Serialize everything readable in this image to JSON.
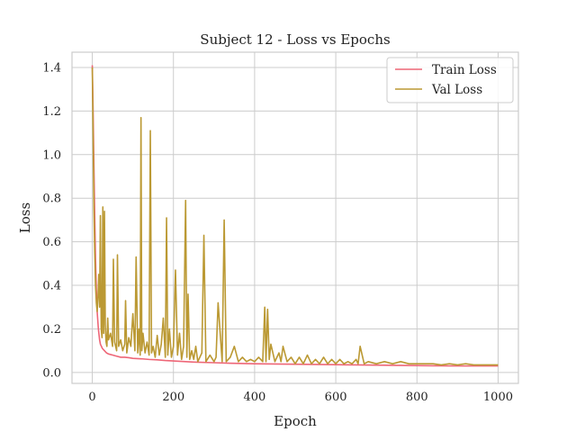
{
  "chart_data": {
    "type": "line",
    "title": "Subject 12 - Loss vs Epochs",
    "xlabel": "Epoch",
    "ylabel": "Loss",
    "xlim": [
      -50,
      1050
    ],
    "ylim": [
      -0.05,
      1.47
    ],
    "xticks": [
      0,
      200,
      400,
      600,
      800,
      1000
    ],
    "yticks": [
      0.0,
      0.2,
      0.4,
      0.6,
      0.8,
      1.0,
      1.2,
      1.4
    ],
    "xtick_labels": [
      "0",
      "200",
      "400",
      "600",
      "800",
      "1000"
    ],
    "ytick_labels": [
      "0.0",
      "0.2",
      "0.4",
      "0.6",
      "0.8",
      "1.0",
      "1.2",
      "1.4"
    ],
    "grid": true,
    "legend_position": "top-right",
    "series": [
      {
        "name": "Train Loss",
        "color": "#ee6677",
        "x": [
          0,
          2,
          4,
          6,
          8,
          10,
          12,
          15,
          18,
          20,
          25,
          30,
          35,
          40,
          50,
          60,
          70,
          80,
          90,
          100,
          120,
          140,
          160,
          180,
          200,
          250,
          300,
          350,
          400,
          450,
          500,
          550,
          600,
          650,
          700,
          750,
          800,
          850,
          900,
          950,
          1000
        ],
        "y": [
          1.41,
          1.2,
          0.95,
          0.72,
          0.52,
          0.38,
          0.28,
          0.2,
          0.15,
          0.13,
          0.11,
          0.1,
          0.09,
          0.085,
          0.08,
          0.075,
          0.07,
          0.07,
          0.068,
          0.065,
          0.063,
          0.06,
          0.058,
          0.055,
          0.053,
          0.048,
          0.045,
          0.042,
          0.04,
          0.039,
          0.038,
          0.037,
          0.036,
          0.035,
          0.034,
          0.033,
          0.032,
          0.031,
          0.03,
          0.03,
          0.03
        ]
      },
      {
        "name": "Val Loss",
        "color": "#bb9933",
        "x": [
          0,
          2,
          4,
          6,
          8,
          10,
          12,
          14,
          16,
          18,
          20,
          22,
          24,
          26,
          28,
          30,
          32,
          34,
          36,
          38,
          40,
          45,
          50,
          52,
          55,
          60,
          62,
          65,
          70,
          75,
          80,
          82,
          85,
          90,
          95,
          100,
          105,
          108,
          112,
          115,
          118,
          120,
          122,
          125,
          130,
          135,
          140,
          143,
          146,
          150,
          155,
          160,
          165,
          170,
          175,
          180,
          183,
          186,
          190,
          195,
          200,
          205,
          210,
          215,
          220,
          225,
          230,
          233,
          236,
          240,
          245,
          250,
          255,
          260,
          270,
          275,
          280,
          290,
          300,
          305,
          310,
          320,
          325,
          330,
          340,
          350,
          360,
          370,
          380,
          390,
          400,
          410,
          420,
          425,
          428,
          432,
          436,
          440,
          450,
          460,
          465,
          470,
          480,
          490,
          500,
          510,
          520,
          530,
          540,
          550,
          560,
          570,
          580,
          590,
          600,
          610,
          620,
          630,
          640,
          650,
          655,
          660,
          670,
          680,
          700,
          720,
          740,
          760,
          780,
          800,
          820,
          840,
          860,
          880,
          900,
          920,
          940,
          960,
          980,
          1000
        ],
        "y": [
          1.4,
          1.1,
          0.75,
          0.55,
          0.4,
          0.32,
          0.28,
          0.35,
          0.45,
          0.3,
          0.72,
          0.2,
          0.16,
          0.76,
          0.18,
          0.74,
          0.22,
          0.14,
          0.12,
          0.25,
          0.15,
          0.18,
          0.12,
          0.52,
          0.14,
          0.1,
          0.54,
          0.12,
          0.15,
          0.1,
          0.13,
          0.33,
          0.09,
          0.16,
          0.12,
          0.27,
          0.1,
          0.53,
          0.09,
          0.2,
          0.08,
          1.17,
          0.1,
          0.18,
          0.09,
          0.14,
          0.08,
          1.11,
          0.09,
          0.12,
          0.07,
          0.17,
          0.08,
          0.13,
          0.25,
          0.07,
          0.71,
          0.08,
          0.2,
          0.07,
          0.12,
          0.47,
          0.08,
          0.18,
          0.06,
          0.12,
          0.79,
          0.07,
          0.36,
          0.06,
          0.1,
          0.06,
          0.12,
          0.05,
          0.09,
          0.63,
          0.05,
          0.08,
          0.05,
          0.07,
          0.32,
          0.05,
          0.7,
          0.05,
          0.07,
          0.12,
          0.05,
          0.07,
          0.05,
          0.06,
          0.05,
          0.07,
          0.05,
          0.3,
          0.05,
          0.29,
          0.06,
          0.13,
          0.05,
          0.09,
          0.05,
          0.12,
          0.05,
          0.07,
          0.04,
          0.07,
          0.04,
          0.08,
          0.04,
          0.06,
          0.04,
          0.07,
          0.04,
          0.06,
          0.04,
          0.06,
          0.04,
          0.05,
          0.04,
          0.06,
          0.04,
          0.12,
          0.04,
          0.05,
          0.04,
          0.05,
          0.04,
          0.05,
          0.04,
          0.04,
          0.04,
          0.04,
          0.035,
          0.04,
          0.035,
          0.04,
          0.035,
          0.035,
          0.035,
          0.035
        ]
      }
    ]
  }
}
